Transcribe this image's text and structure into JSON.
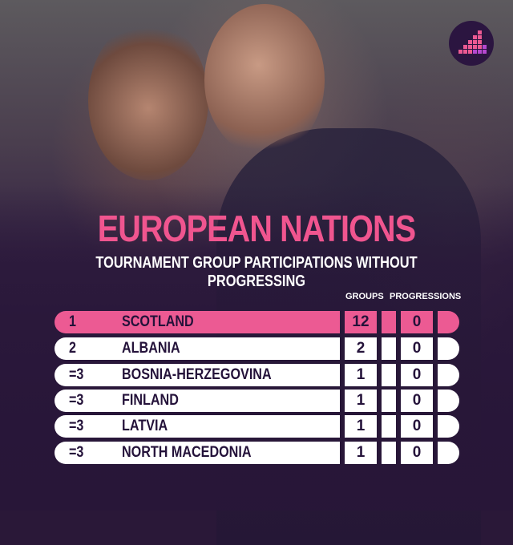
{
  "title": "EUROPEAN NATIONS",
  "subtitle": "TOURNAMENT GROUP PARTICIPATIONS WITHOUT PROGRESSING",
  "columns": {
    "groups": "GROUPS",
    "progressions": "PROGRESSIONS"
  },
  "rows": [
    {
      "rank": "1",
      "nation": "SCOTLAND",
      "groups": "12",
      "progressions": "0"
    },
    {
      "rank": "2",
      "nation": "ALBANIA",
      "groups": "2",
      "progressions": "0"
    },
    {
      "rank": "=3",
      "nation": "BOSNIA-HERZEGOVINA",
      "groups": "1",
      "progressions": "0"
    },
    {
      "rank": "=3",
      "nation": "FINLAND",
      "groups": "1",
      "progressions": "0"
    },
    {
      "rank": "=3",
      "nation": "LATVIA",
      "groups": "1",
      "progressions": "0"
    },
    {
      "rank": "=3",
      "nation": "NORTH MACEDONIA",
      "groups": "1",
      "progressions": "0"
    }
  ],
  "colors": {
    "accent": "#ec5a93",
    "row": "#ffffff",
    "text": "#24123a"
  },
  "logo_icon": "bar-chart-logo-icon"
}
